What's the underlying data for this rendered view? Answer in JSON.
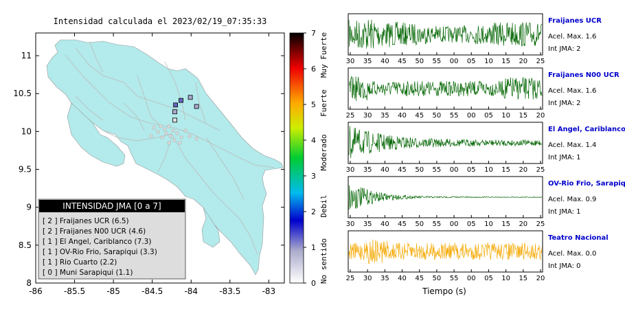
{
  "map": {
    "title": "Intensidad calculada el 2023/02/19_07:35:33",
    "x_ticks": [
      "-86",
      "-85.5",
      "-85",
      "-84.5",
      "-84",
      "-83.5",
      "-83"
    ],
    "y_ticks": [
      "11",
      "10.5",
      "10",
      "9.5",
      "9",
      "8.5",
      "8"
    ],
    "xlim": [
      -86,
      -82.8
    ],
    "ylim": [
      8,
      11.3
    ],
    "stations": [
      {
        "lon": -84.2,
        "lat": 10.35,
        "level": 2
      },
      {
        "lon": -84.13,
        "lat": 10.41,
        "level": 2
      },
      {
        "lon": -84.01,
        "lat": 10.45,
        "level": 1
      },
      {
        "lon": -83.93,
        "lat": 10.33,
        "level": 1
      },
      {
        "lon": -84.21,
        "lat": 10.26,
        "level": 1
      },
      {
        "lon": -84.21,
        "lat": 10.15,
        "level": 0
      }
    ]
  },
  "legend": {
    "title": "INTENSIDAD JMA [0 a 7]",
    "items": [
      "[ 2 ]  Fraijanes UCR (6.5)",
      "[ 2 ]  Fraijanes N00 UCR (4.6)",
      "[ 1 ]  El Angel, Cariblanco (7.3)",
      "[ 1 ]  OV-Rio Frio, Sarapiqui (3.3)",
      "[ 1 ]  Rio Cuarto (2.2)",
      "[ 0 ]  Muni Sarapiqui (1.1)"
    ]
  },
  "colorbar": {
    "ticks": [
      "0",
      "1",
      "2",
      "3",
      "4",
      "5",
      "6",
      "7"
    ],
    "labels": [
      "No sentido",
      "Debil",
      "Moderado",
      "Fuerte",
      "Muy Fuerte"
    ],
    "colors": [
      "#ffffff",
      "#0000cc",
      "#00ddee",
      "#00cc00",
      "#ffee00",
      "#ff8800",
      "#ee0000",
      "#000000"
    ]
  },
  "chart_data": [
    {
      "type": "line",
      "station": "Fraijanes UCR",
      "accel_label": "Acel. Max. 1.6",
      "jma_label": "Int JMA: 2",
      "color": "#006400",
      "x_ticks": [
        "30",
        "35",
        "40",
        "45",
        "50",
        "55",
        "00",
        "05",
        "10",
        "15",
        "20",
        "25"
      ],
      "pattern": "sustained"
    },
    {
      "type": "line",
      "station": "Fraijanes N00 UCR",
      "accel_label": "Acel. Max. 1.6",
      "jma_label": "Int JMA: 2",
      "color": "#006400",
      "x_ticks": [
        "25",
        "30",
        "35",
        "40",
        "45",
        "50",
        "55",
        "00",
        "05",
        "10",
        "15",
        "20"
      ],
      "pattern": "sustained-late"
    },
    {
      "type": "line",
      "station": "El Angel, Cariblanco",
      "accel_label": "Acel. Max. 1.4",
      "jma_label": "Int JMA: 1",
      "color": "#006400",
      "x_ticks": [
        "30",
        "35",
        "40",
        "45",
        "50",
        "55",
        "00",
        "05",
        "10",
        "15",
        "20",
        "25"
      ],
      "pattern": "decay"
    },
    {
      "type": "line",
      "station": "OV-Rio Frio, Sarapiqui",
      "accel_label": "Acel. Max. 0.9",
      "jma_label": "Int JMA: 1",
      "color": "#006400",
      "x_ticks": [
        "30",
        "35",
        "40",
        "45",
        "50",
        "55",
        "00",
        "05",
        "10",
        "15",
        "20",
        "25"
      ],
      "pattern": "fast-decay"
    },
    {
      "type": "line",
      "station": "Teatro Nacional",
      "accel_label": "Acel. Max. 0.0",
      "jma_label": "Int JMA: 0",
      "color": "#f5a800",
      "x_ticks": [
        "25",
        "30",
        "35",
        "40",
        "45",
        "50",
        "55",
        "00",
        "05",
        "10",
        "15",
        "20"
      ],
      "pattern": "noise"
    }
  ],
  "xlabel": "Tiempo (s)"
}
